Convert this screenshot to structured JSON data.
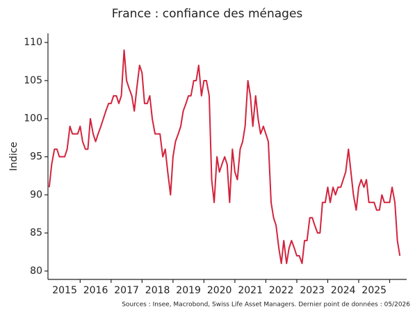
{
  "chart_data": {
    "type": "line",
    "title": "France : confiance des ménages",
    "y_label": "Indice",
    "source": "Sources : Insee, Macrobond, Swiss Life Asset Managers. Dernier point de données : 05/2026",
    "color": "#d2233c",
    "x": [
      2015.0,
      2015.08,
      2015.17,
      2015.25,
      2015.33,
      2015.42,
      2015.5,
      2015.58,
      2015.67,
      2015.75,
      2015.83,
      2015.92,
      2016.0,
      2016.08,
      2016.17,
      2016.25,
      2016.33,
      2016.42,
      2016.5,
      2016.58,
      2016.67,
      2016.75,
      2016.83,
      2016.92,
      2017.0,
      2017.08,
      2017.17,
      2017.25,
      2017.33,
      2017.42,
      2017.5,
      2017.58,
      2017.67,
      2017.75,
      2017.83,
      2017.92,
      2018.0,
      2018.08,
      2018.17,
      2018.25,
      2018.33,
      2018.42,
      2018.5,
      2018.58,
      2018.67,
      2018.75,
      2018.83,
      2018.92,
      2019.0,
      2019.08,
      2019.17,
      2019.25,
      2019.33,
      2019.42,
      2019.5,
      2019.58,
      2019.67,
      2019.75,
      2019.83,
      2019.92,
      2020.0,
      2020.08,
      2020.17,
      2020.25,
      2020.33,
      2020.42,
      2020.5,
      2020.58,
      2020.67,
      2020.75,
      2020.83,
      2020.92,
      2021.0,
      2021.08,
      2021.17,
      2021.25,
      2021.33,
      2021.42,
      2021.5,
      2021.58,
      2021.67,
      2021.75,
      2021.83,
      2021.92,
      2022.0,
      2022.08,
      2022.17,
      2022.25,
      2022.33,
      2022.42,
      2022.5,
      2022.58,
      2022.67,
      2022.75,
      2022.83,
      2022.92,
      2023.0,
      2023.08,
      2023.17,
      2023.25,
      2023.33,
      2023.42,
      2023.5,
      2023.58,
      2023.67,
      2023.75,
      2023.83,
      2023.92,
      2024.0,
      2024.08,
      2024.17,
      2024.25,
      2024.33,
      2024.42,
      2024.5,
      2024.58,
      2024.67,
      2024.75,
      2024.83,
      2024.92,
      2025.0,
      2025.08,
      2025.17,
      2025.25,
      2025.33,
      2025.42,
      2025.5,
      2025.58,
      2025.67,
      2025.75,
      2025.83,
      2025.92,
      2026.0,
      2026.08,
      2026.17,
      2026.25,
      2026.33
    ],
    "values": [
      91,
      94,
      96,
      96,
      95,
      95,
      95,
      96,
      99,
      98,
      98,
      98,
      99,
      97,
      96,
      96,
      100,
      98,
      97,
      98,
      99,
      100,
      101,
      102,
      102,
      103,
      103,
      102,
      103,
      109,
      105,
      104,
      103,
      101,
      104,
      107,
      106,
      102,
      102,
      103,
      100,
      98,
      98,
      98,
      95,
      96,
      93,
      90,
      95,
      97,
      98,
      99,
      101,
      102,
      103,
      103,
      105,
      105,
      107,
      103,
      105,
      105,
      103,
      92,
      89,
      95,
      93,
      94,
      95,
      94,
      89,
      96,
      93,
      92,
      96,
      97,
      99,
      105,
      103,
      99,
      103,
      100,
      98,
      99,
      98,
      97,
      89,
      87,
      86,
      83,
      81,
      84,
      81,
      83,
      84,
      83,
      82,
      82,
      81,
      84,
      84,
      87,
      87,
      86,
      85,
      85,
      89,
      89,
      91,
      89,
      91,
      90,
      91,
      91,
      92,
      93,
      96,
      93,
      90,
      88,
      91,
      92,
      91,
      92,
      89,
      89,
      89,
      88,
      88,
      90,
      89,
      89,
      89,
      91,
      89,
      84,
      82
    ],
    "xlim": [
      2014.96,
      2026.55
    ],
    "xticks": [
      2016,
      2017,
      2018,
      2019,
      2020,
      2021,
      2022,
      2023,
      2024,
      2025,
      2026
    ],
    "xtick_labels": [
      {
        "value": 2015.5,
        "label": "2015"
      },
      {
        "value": 2016.5,
        "label": "2016"
      },
      {
        "value": 2017.5,
        "label": "2017"
      },
      {
        "value": 2018.5,
        "label": "2018"
      },
      {
        "value": 2019.5,
        "label": "2019"
      },
      {
        "value": 2020.5,
        "label": "2020"
      },
      {
        "value": 2021.5,
        "label": "2021"
      },
      {
        "value": 2022.5,
        "label": "2022"
      },
      {
        "value": 2023.5,
        "label": "2023"
      },
      {
        "value": 2024.5,
        "label": "2024"
      },
      {
        "value": 2025.5,
        "label": "2025"
      }
    ],
    "ylim": [
      78.9,
      111.2
    ],
    "yticks": [
      80,
      85,
      90,
      95,
      100,
      105,
      110
    ],
    "grid": false
  }
}
